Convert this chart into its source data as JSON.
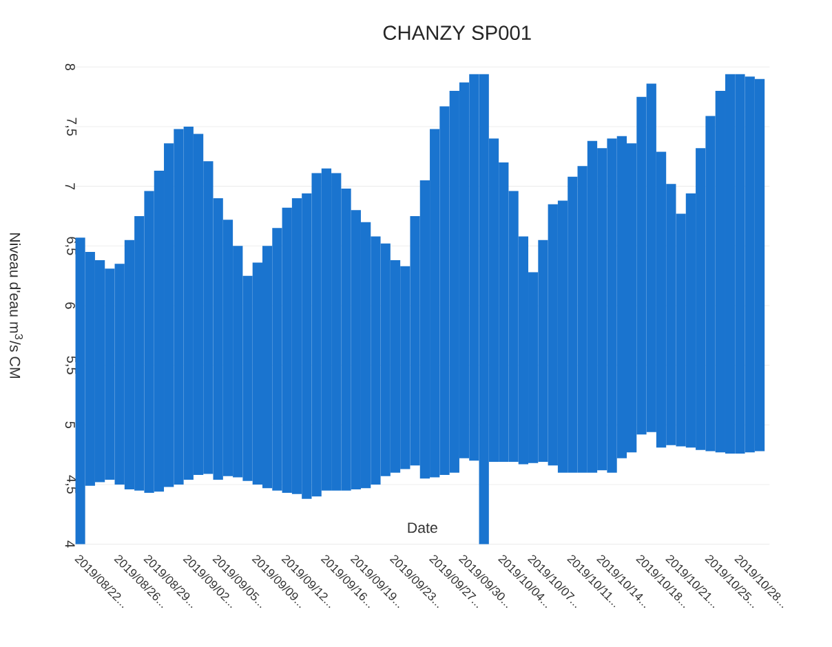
{
  "chart_data": {
    "type": "bar",
    "title": "CHANZY SP001",
    "xlabel": "Date",
    "ylabel": "Niveau d'eau m$^{3}$/s CM",
    "color": "#1a74cf",
    "grid": "y",
    "x": [
      "2019-08-22",
      "2019-08-23",
      "2019-08-24",
      "2019-08-25",
      "2019-08-26",
      "2019-08-27",
      "2019-08-28",
      "2019-08-29",
      "2019-08-30",
      "2019-08-31",
      "2019-09-01",
      "2019-09-02",
      "2019-09-03",
      "2019-09-04",
      "2019-09-05",
      "2019-09-06",
      "2019-09-07",
      "2019-09-08",
      "2019-09-09",
      "2019-09-10",
      "2019-09-11",
      "2019-09-12",
      "2019-09-13",
      "2019-09-14",
      "2019-09-15",
      "2019-09-16",
      "2019-09-17",
      "2019-09-18",
      "2019-09-19",
      "2019-09-20",
      "2019-09-21",
      "2019-09-22",
      "2019-09-23",
      "2019-09-24",
      "2019-09-25",
      "2019-09-26",
      "2019-09-27",
      "2019-09-28",
      "2019-09-29",
      "2019-09-30",
      "2019-10-01",
      "2019-10-02",
      "2019-10-03",
      "2019-10-04",
      "2019-10-05",
      "2019-10-06",
      "2019-10-07",
      "2019-10-08",
      "2019-10-09",
      "2019-10-10",
      "2019-10-11",
      "2019-10-12",
      "2019-10-13",
      "2019-10-14",
      "2019-10-15",
      "2019-10-16",
      "2019-10-17",
      "2019-10-18",
      "2019-10-19",
      "2019-10-20",
      "2019-10-21",
      "2019-10-22",
      "2019-10-23",
      "2019-10-24",
      "2019-10-25",
      "2019-10-26",
      "2019-10-27",
      "2019-10-28",
      "2019-10-29",
      "2019-10-30"
    ],
    "base": [
      4.0,
      4.49,
      4.52,
      4.54,
      4.5,
      4.46,
      4.45,
      4.43,
      4.44,
      4.48,
      4.5,
      4.54,
      4.58,
      4.59,
      4.54,
      4.57,
      4.56,
      4.53,
      4.5,
      4.47,
      4.45,
      4.43,
      4.42,
      4.38,
      4.4,
      4.45,
      4.45,
      4.45,
      4.46,
      4.47,
      4.5,
      4.57,
      4.6,
      4.63,
      4.66,
      4.55,
      4.56,
      4.58,
      4.6,
      4.72,
      4.7,
      4.0,
      4.69,
      4.69,
      4.69,
      4.67,
      4.68,
      4.69,
      4.66,
      4.6,
      4.6,
      4.6,
      4.6,
      4.62,
      4.6,
      4.72,
      4.77,
      4.92,
      4.94,
      4.81,
      4.83,
      4.82,
      4.81,
      4.79,
      4.78,
      4.77,
      4.76,
      4.76,
      4.77,
      4.78
    ],
    "values": [
      2.57,
      1.96,
      1.86,
      1.77,
      1.85,
      2.09,
      2.3,
      2.53,
      2.69,
      2.88,
      2.98,
      2.96,
      2.86,
      2.62,
      2.36,
      2.15,
      1.94,
      1.72,
      1.86,
      2.03,
      2.2,
      2.39,
      2.48,
      2.56,
      2.71,
      2.7,
      2.66,
      2.53,
      2.34,
      2.23,
      2.08,
      1.95,
      1.78,
      1.7,
      2.09,
      2.5,
      2.92,
      3.09,
      3.2,
      3.15,
      3.24,
      3.94,
      2.71,
      2.51,
      2.27,
      1.91,
      1.6,
      1.86,
      2.19,
      2.28,
      2.48,
      2.57,
      2.78,
      2.7,
      2.8,
      2.7,
      2.59,
      2.83,
      2.92,
      2.48,
      2.19,
      1.95,
      2.13,
      2.53,
      2.81,
      3.03,
      3.18,
      3.18,
      3.15,
      3.12
    ],
    "xlim": [
      "2019-08-21T12:00",
      "2019-10-31"
    ],
    "xticks": [
      {
        "value": "2019-08-22",
        "label": "2019/08/22..."
      },
      {
        "value": "2019-08-26",
        "label": "2019/08/26..."
      },
      {
        "value": "2019-08-29",
        "label": "2019/08/29..."
      },
      {
        "value": "2019-09-02",
        "label": "2019/09/02..."
      },
      {
        "value": "2019-09-05",
        "label": "2019/09/05..."
      },
      {
        "value": "2019-09-09",
        "label": "2019/09/09..."
      },
      {
        "value": "2019-09-12",
        "label": "2019/09/12..."
      },
      {
        "value": "2019-09-16",
        "label": "2019/09/16..."
      },
      {
        "value": "2019-09-19",
        "label": "2019/09/19..."
      },
      {
        "value": "2019-09-23",
        "label": "2019/09/23..."
      },
      {
        "value": "2019-09-27",
        "label": "2019/09/27..."
      },
      {
        "value": "2019-09-30",
        "label": "2019/09/30..."
      },
      {
        "value": "2019-10-04",
        "label": "2019/10/04..."
      },
      {
        "value": "2019-10-07",
        "label": "2019/10/07..."
      },
      {
        "value": "2019-10-11",
        "label": "2019/10/11..."
      },
      {
        "value": "2019-10-14",
        "label": "2019/10/14..."
      },
      {
        "value": "2019-10-18",
        "label": "2019/10/18..."
      },
      {
        "value": "2019-10-21",
        "label": "2019/10/21..."
      },
      {
        "value": "2019-10-25",
        "label": "2019/10/25..."
      },
      {
        "value": "2019-10-28",
        "label": "2019/10/28..."
      }
    ],
    "ylim": [
      4,
      8
    ],
    "yticks": [
      4,
      {
        "value": 4.5,
        "label": "4,5"
      },
      5,
      {
        "value": 5.5,
        "label": "5,5"
      },
      6,
      {
        "value": 6.5,
        "label": "6,5"
      },
      7,
      {
        "value": 7.5,
        "label": "7,5"
      },
      8
    ]
  }
}
